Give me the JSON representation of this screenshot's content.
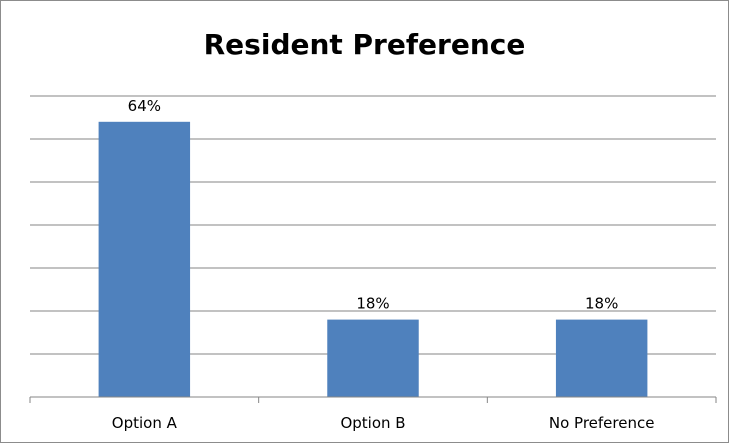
{
  "chart_data": {
    "type": "bar",
    "title": "Resident Preference",
    "categories": [
      "Option A",
      "Option B",
      "No Preference"
    ],
    "values": [
      64,
      18,
      18
    ],
    "data_labels": [
      "64%",
      "18%",
      "18%"
    ],
    "ylim": [
      0,
      70
    ],
    "y_gridline_step": 10,
    "y_axis_shown": false,
    "grid": true,
    "legend": "none",
    "bar_color": "#4f81bd",
    "grid_color": "#868686"
  }
}
